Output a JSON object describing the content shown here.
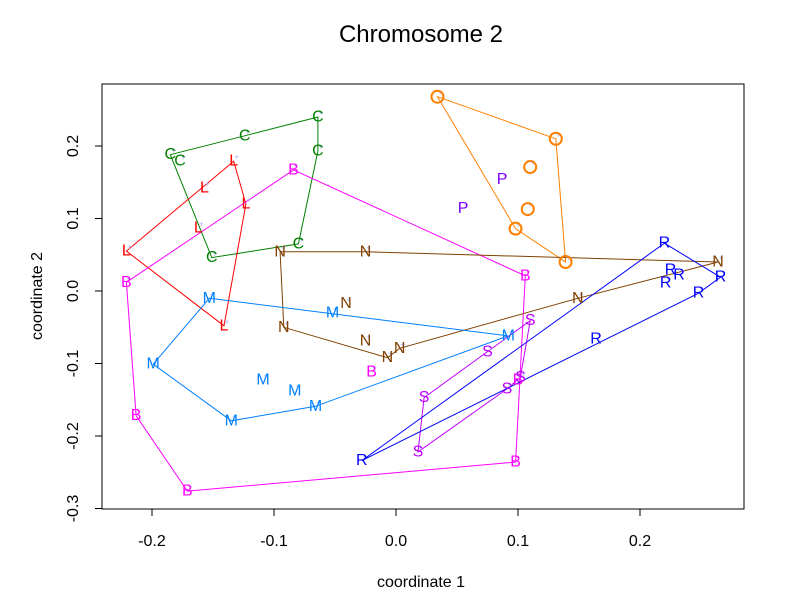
{
  "chart_data": {
    "type": "scatter",
    "title": "Chromosome 2",
    "xlabel": "coordinate 1",
    "ylabel": "coordinate 2",
    "xlim": [
      -0.24,
      0.285
    ],
    "ylim": [
      -0.3,
      0.285
    ],
    "xticks": [
      -0.2,
      -0.1,
      0.0,
      0.1,
      0.2
    ],
    "xtick_labels": [
      "-0.2",
      "-0.1",
      "0.0",
      "0.1",
      "0.2"
    ],
    "yticks": [
      -0.3,
      -0.2,
      -0.1,
      0.0,
      0.1,
      0.2
    ],
    "ytick_labels": [
      "-0.3",
      "-0.2",
      "-0.1",
      "0.0",
      "0.1",
      "0.2"
    ],
    "grid": false,
    "legend": "none",
    "series": [
      {
        "name": "C",
        "label": "C",
        "color": "#008000",
        "points": [
          [
            -0.064,
            0.24
          ],
          [
            -0.124,
            0.214
          ],
          [
            -0.185,
            0.188
          ],
          [
            -0.177,
            0.179
          ],
          [
            -0.064,
            0.193
          ],
          [
            -0.08,
            0.065
          ],
          [
            -0.151,
            0.046
          ]
        ],
        "hull": [
          0,
          1,
          2,
          6,
          5,
          4
        ]
      },
      {
        "name": "L",
        "label": "L",
        "color": "#ff0000",
        "points": [
          [
            -0.133,
            0.179
          ],
          [
            -0.157,
            0.142
          ],
          [
            -0.123,
            0.12
          ],
          [
            -0.162,
            0.087
          ],
          [
            -0.221,
            0.055
          ],
          [
            -0.141,
            -0.048
          ]
        ],
        "hull": [
          0,
          4,
          5,
          2
        ]
      },
      {
        "name": "B",
        "label": "B",
        "color": "#ff00ff",
        "points": [
          [
            -0.084,
            0.167
          ],
          [
            -0.221,
            0.012
          ],
          [
            0.106,
            0.021
          ],
          [
            -0.02,
            -0.112
          ],
          [
            -0.213,
            -0.172
          ],
          [
            0.098,
            -0.236
          ],
          [
            -0.171,
            -0.276
          ],
          [
            0.1,
            -0.123
          ]
        ],
        "hull": [
          0,
          2,
          5,
          6,
          4,
          1
        ]
      },
      {
        "name": "O",
        "label": "O",
        "color": "#ff8000",
        "points": [
          [
            0.034,
            0.268
          ],
          [
            0.131,
            0.21
          ],
          [
            0.11,
            0.171
          ],
          [
            0.108,
            0.113
          ],
          [
            0.098,
            0.086
          ],
          [
            0.139,
            0.04
          ]
        ],
        "hull": [
          0,
          1,
          5,
          4
        ]
      },
      {
        "name": "P",
        "label": "P",
        "color": "#8000ff",
        "points": [
          [
            0.087,
            0.154
          ],
          [
            0.055,
            0.114
          ]
        ],
        "hull": []
      },
      {
        "name": "N",
        "label": "N",
        "color": "#804000",
        "points": [
          [
            -0.095,
            0.054
          ],
          [
            -0.025,
            0.054
          ],
          [
            0.264,
            0.04
          ],
          [
            0.149,
            -0.01
          ],
          [
            -0.041,
            -0.017
          ],
          [
            -0.092,
            -0.05
          ],
          [
            -0.025,
            -0.069
          ],
          [
            -0.007,
            -0.092
          ],
          [
            0.003,
            -0.079
          ]
        ],
        "hull": [
          0,
          1,
          2,
          3,
          8,
          7,
          5
        ]
      },
      {
        "name": "M",
        "label": "M",
        "color": "#0080ff",
        "points": [
          [
            -0.153,
            -0.01
          ],
          [
            -0.052,
            -0.03
          ],
          [
            0.092,
            -0.062
          ],
          [
            -0.199,
            -0.101
          ],
          [
            -0.109,
            -0.123
          ],
          [
            -0.083,
            -0.138
          ],
          [
            -0.066,
            -0.159
          ],
          [
            -0.135,
            -0.179
          ]
        ],
        "hull": [
          0,
          2,
          6,
          7,
          3
        ]
      },
      {
        "name": "S",
        "label": "S",
        "color": "#c000ff",
        "points": [
          [
            0.11,
            -0.041
          ],
          [
            0.075,
            -0.084
          ],
          [
            0.102,
            -0.119
          ],
          [
            0.091,
            -0.135
          ],
          [
            0.023,
            -0.147
          ],
          [
            0.018,
            -0.222
          ]
        ],
        "hull": [
          0,
          4,
          5,
          3,
          2
        ]
      },
      {
        "name": "R",
        "label": "R",
        "color": "#0000ff",
        "points": [
          [
            0.22,
            0.066
          ],
          [
            0.225,
            0.029
          ],
          [
            0.232,
            0.022
          ],
          [
            0.221,
            0.011
          ],
          [
            0.266,
            0.019
          ],
          [
            0.248,
            -0.003
          ],
          [
            0.164,
            -0.066
          ],
          [
            -0.028,
            -0.234
          ]
        ],
        "hull": [
          0,
          4,
          5,
          7
        ]
      }
    ]
  }
}
